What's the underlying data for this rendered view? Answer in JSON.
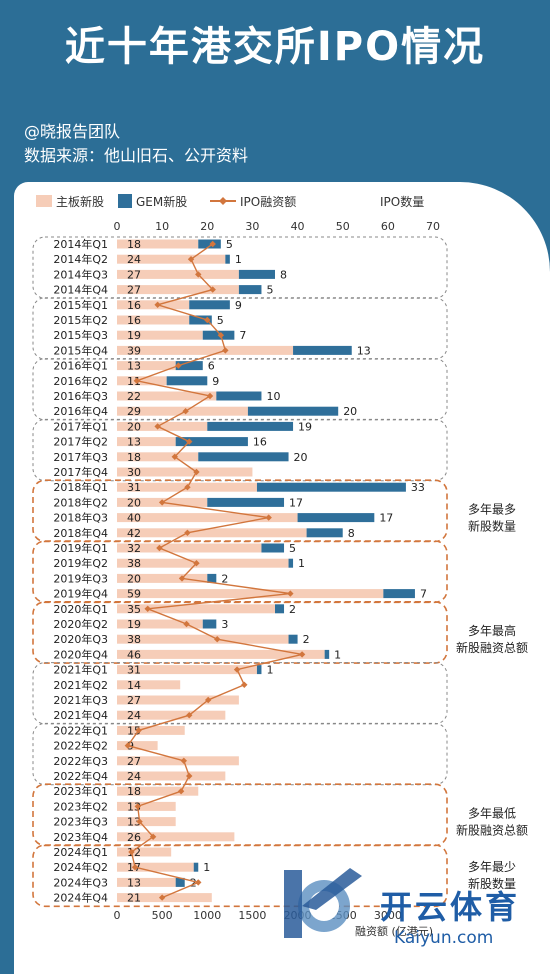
{
  "header": {
    "title": "近十年港交所IPO情况",
    "credit": "@晓报告团队",
    "source": "数据来源：他山旧石、公开资料"
  },
  "watermark": {
    "brand": "开云体育",
    "site": "Kaiyun.com"
  },
  "chart_data": {
    "type": "bar",
    "colors": {
      "main": "#f6cdb8",
      "gem": "#2f6f9a",
      "line": "#d2763d"
    },
    "legend": [
      {
        "key": "main",
        "label": "主板新股"
      },
      {
        "key": "gem",
        "label": "GEM新股"
      },
      {
        "key": "line",
        "label": "IPO融资额"
      },
      {
        "key": "count",
        "label": "IPO数量"
      }
    ],
    "top_axis": {
      "ticks": [
        0,
        10,
        20,
        30,
        40,
        50,
        60,
        70
      ],
      "range": [
        0,
        70
      ]
    },
    "bottom_axis": {
      "ticks": [
        0,
        500,
        1000,
        1500,
        2000,
        2500,
        3000
      ],
      "range": [
        0,
        3500
      ],
      "label": "融资额 (亿港元)"
    },
    "categories": [
      "2014年Q1",
      "2014年Q2",
      "2014年Q3",
      "2014年Q4",
      "2015年Q1",
      "2015年Q2",
      "2015年Q3",
      "2015年Q4",
      "2016年Q1",
      "2016年Q2",
      "2016年Q3",
      "2016年Q4",
      "2017年Q1",
      "2017年Q2",
      "2017年Q3",
      "2017年Q4",
      "2018年Q1",
      "2018年Q2",
      "2018年Q3",
      "2018年Q4",
      "2019年Q1",
      "2019年Q2",
      "2019年Q3",
      "2019年Q4",
      "2020年Q1",
      "2020年Q2",
      "2020年Q3",
      "2020年Q4",
      "2021年Q1",
      "2021年Q2",
      "2021年Q3",
      "2021年Q4",
      "2022年Q1",
      "2022年Q2",
      "2022年Q3",
      "2022年Q4",
      "2023年Q1",
      "2023年Q2",
      "2023年Q3",
      "2023年Q4",
      "2024年Q1",
      "2024年Q2",
      "2024年Q3",
      "2024年Q4"
    ],
    "series": [
      {
        "name": "主板新股",
        "values": [
          18,
          24,
          27,
          27,
          16,
          16,
          19,
          39,
          13,
          11,
          22,
          29,
          20,
          13,
          18,
          30,
          31,
          20,
          40,
          42,
          32,
          38,
          20,
          59,
          35,
          19,
          38,
          46,
          31,
          14,
          27,
          24,
          15,
          9,
          27,
          24,
          18,
          13,
          13,
          26,
          12,
          17,
          13,
          21
        ]
      },
      {
        "name": "GEM新股",
        "values": [
          5,
          1,
          8,
          5,
          9,
          5,
          7,
          13,
          6,
          9,
          10,
          20,
          19,
          16,
          20,
          0,
          33,
          17,
          17,
          8,
          5,
          1,
          2,
          7,
          2,
          3,
          2,
          1,
          1,
          0,
          0,
          0,
          0,
          0,
          0,
          0,
          0,
          0,
          0,
          0,
          0,
          1,
          2,
          0
        ]
      },
      {
        "name": "IPO融资额",
        "values": [
          1060,
          820,
          900,
          1060,
          450,
          1000,
          1150,
          1200,
          680,
          220,
          1030,
          760,
          450,
          800,
          640,
          880,
          780,
          500,
          1680,
          780,
          470,
          880,
          720,
          1920,
          340,
          770,
          1110,
          2050,
          1330,
          1410,
          1010,
          800,
          240,
          120,
          740,
          800,
          710,
          230,
          250,
          400,
          160,
          200,
          900,
          500
        ]
      }
    ],
    "labels_main": [
      "18",
      "24",
      "27",
      "27",
      "16",
      "16",
      "19",
      "39",
      "13",
      "11",
      "22",
      "29",
      "20",
      "13",
      "18",
      "30",
      "31",
      "20",
      "40",
      "42",
      "32",
      "38",
      "20",
      "59",
      "35",
      "19",
      "38",
      "46",
      "31",
      "14",
      "27",
      "24",
      "15",
      "9",
      "27",
      "24",
      "18",
      "13",
      "13",
      "26",
      "12",
      "17",
      "13",
      "21"
    ],
    "labels_gem": [
      "5",
      "1",
      "8",
      "5",
      "9",
      "5",
      "7",
      "13",
      "6",
      "9",
      "10",
      "20",
      "19",
      "16",
      "20",
      "",
      "33",
      "17",
      "17",
      "8",
      "5",
      "1",
      "2",
      "7",
      "2",
      "3",
      "2",
      "1",
      "1",
      "",
      "",
      "",
      "",
      "",
      "",
      "",
      "",
      "",
      "",
      "",
      "",
      "1",
      "2",
      ""
    ],
    "groups": [
      {
        "start": 0,
        "end": 3,
        "style": "gray"
      },
      {
        "start": 4,
        "end": 7,
        "style": "gray"
      },
      {
        "start": 8,
        "end": 11,
        "style": "gray"
      },
      {
        "start": 12,
        "end": 15,
        "style": "gray"
      },
      {
        "start": 16,
        "end": 19,
        "style": "orange"
      },
      {
        "start": 20,
        "end": 23,
        "style": "orange"
      },
      {
        "start": 24,
        "end": 27,
        "style": "orange"
      },
      {
        "start": 28,
        "end": 31,
        "style": "gray"
      },
      {
        "start": 32,
        "end": 35,
        "style": "gray"
      },
      {
        "start": 36,
        "end": 39,
        "style": "orange"
      },
      {
        "start": 40,
        "end": 43,
        "style": "orange"
      }
    ],
    "annotations": [
      {
        "lines": [
          "多年最多",
          "新股数量"
        ],
        "row": 18
      },
      {
        "lines": [
          "多年最高",
          "新股融资总额"
        ],
        "row": 26
      },
      {
        "lines": [
          "多年最低",
          "新股融资总额"
        ],
        "row": 38
      },
      {
        "lines": [
          "多年最少",
          "新股数量"
        ],
        "row": 41.5
      }
    ]
  }
}
